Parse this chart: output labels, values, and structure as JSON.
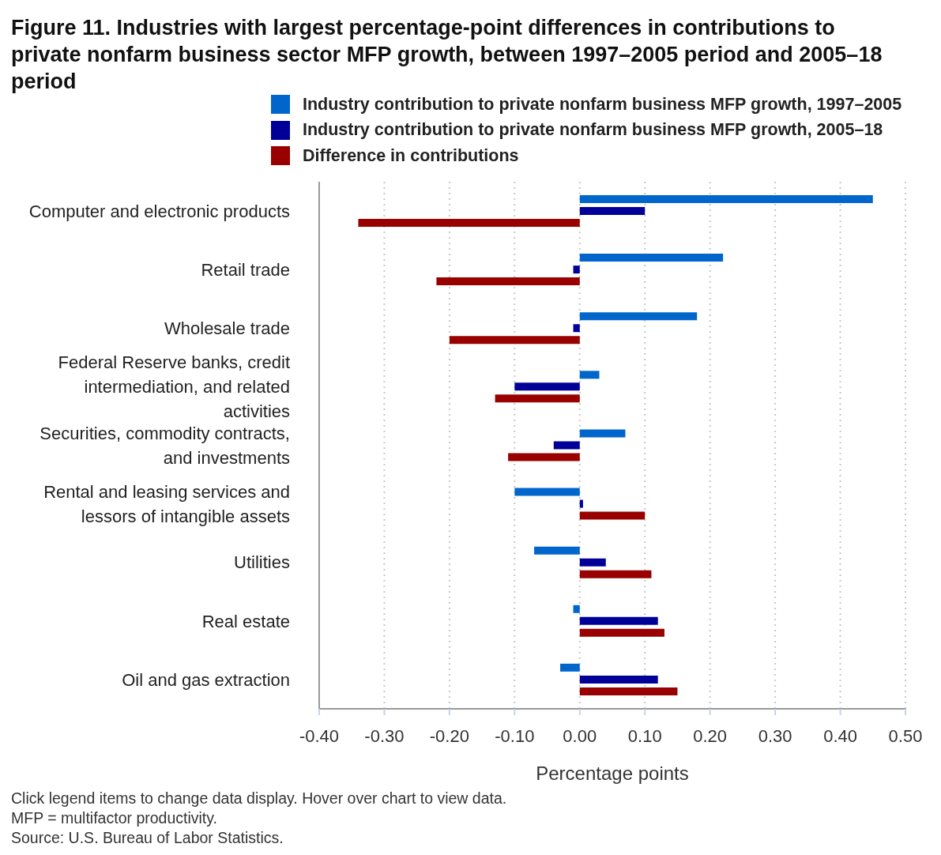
{
  "chart_data": {
    "type": "bar",
    "orientation": "horizontal",
    "title": "Figure 11. Industries with largest percentage-point differences in contributions to private nonfarm business sector MFP growth, between 1997–2005 period and 2005–18 period",
    "xlabel": "Percentage points",
    "categories": [
      "Computer and electronic products",
      "Retail trade",
      "Wholesale trade",
      "Federal Reserve banks, credit intermediation, and related activities",
      "Securities, commodity contracts, and investments",
      "Rental and leasing services and lessors of intangible assets",
      "Utilities",
      "Real estate",
      "Oil and gas extraction"
    ],
    "series": [
      {
        "name": "Industry contribution to private nonfarm business MFP growth, 1997–2005",
        "color": "#0066cc",
        "values": [
          0.45,
          0.22,
          0.18,
          0.03,
          0.07,
          -0.1,
          -0.07,
          -0.01,
          -0.03
        ]
      },
      {
        "name": "Industry contribution to private nonfarm business MFP growth, 2005–18",
        "color": "#000099",
        "values": [
          0.1,
          -0.01,
          -0.01,
          -0.1,
          -0.04,
          0.005,
          0.04,
          0.12,
          0.12
        ]
      },
      {
        "name": "Difference in contributions",
        "color": "#990000",
        "values": [
          -0.34,
          -0.22,
          -0.2,
          -0.13,
          -0.11,
          0.1,
          0.11,
          0.13,
          0.15
        ]
      }
    ],
    "xlim": [
      -0.4,
      0.5
    ],
    "xticks": [
      {
        "value": -0.4,
        "label": "-0.40"
      },
      {
        "value": -0.3,
        "label": "-0.30"
      },
      {
        "value": -0.2,
        "label": "-0.20"
      },
      {
        "value": -0.1,
        "label": "-0.10"
      },
      {
        "value": 0,
        "label": "0.00"
      },
      {
        "value": 0.1,
        "label": "0.10"
      },
      {
        "value": 0.2,
        "label": "0.20"
      },
      {
        "value": 0.3,
        "label": "0.30"
      },
      {
        "value": 0.4,
        "label": "0.40"
      },
      {
        "value": 0.5,
        "label": "0.50"
      }
    ],
    "grid": "x",
    "legend": "top",
    "annotations": [
      "Click legend items to change data display. Hover over chart to view data.",
      "MFP = multifactor productivity.",
      "Source: U.S. Bureau of Labor Statistics."
    ]
  }
}
